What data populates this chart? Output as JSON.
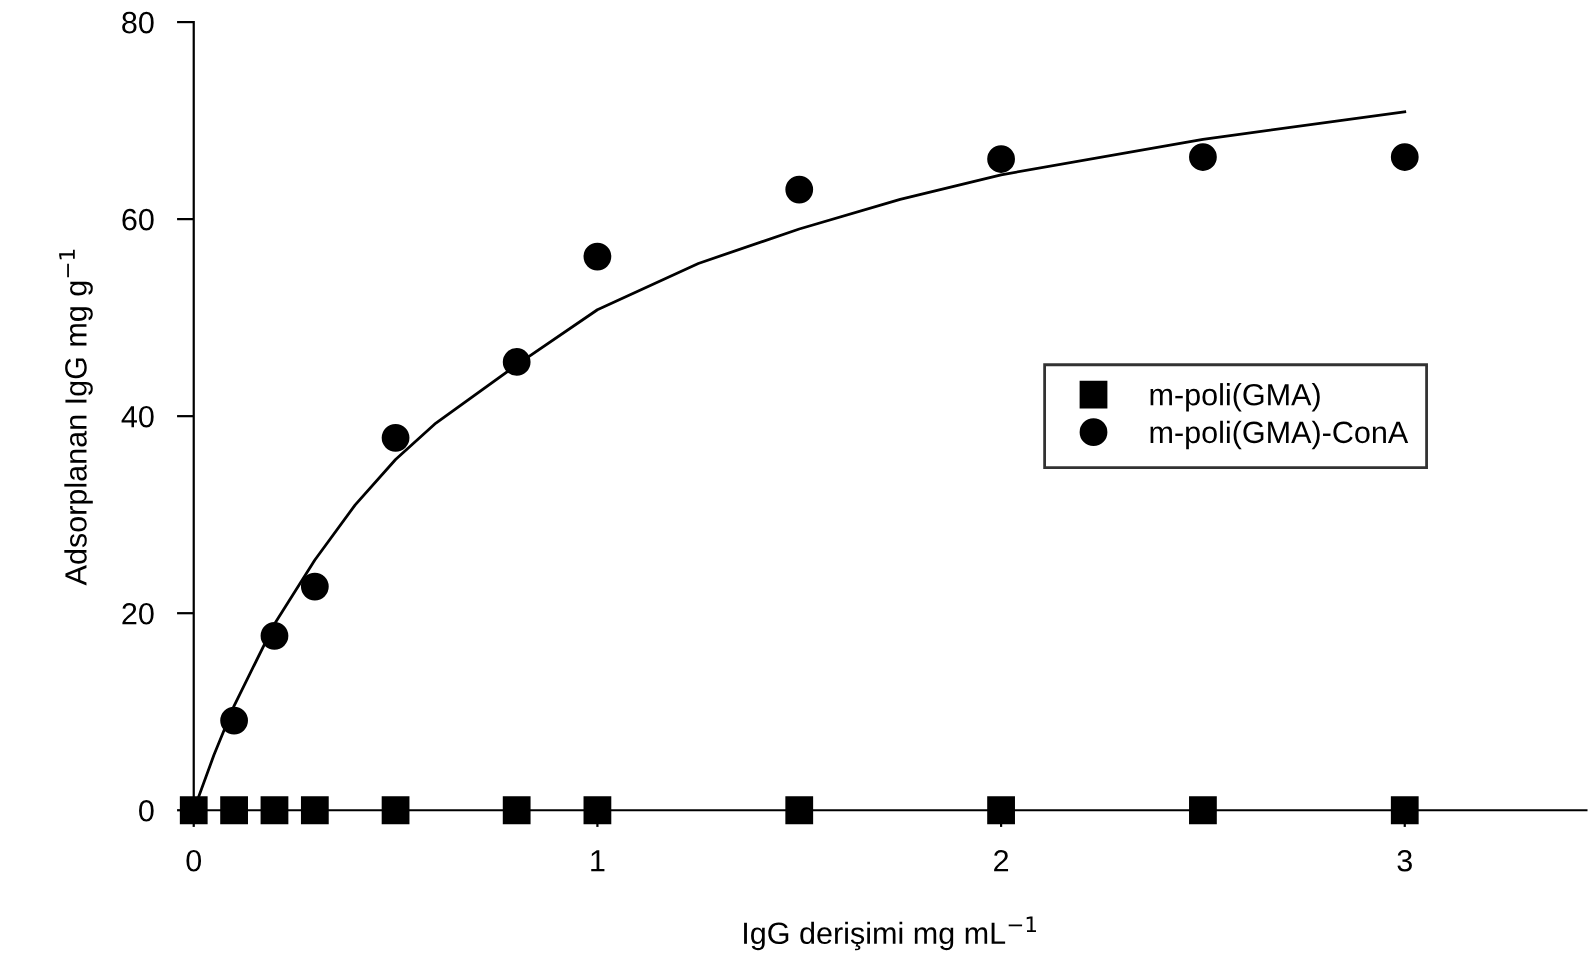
{
  "chart_data": {
    "type": "scatter",
    "xlabel": "IgG derişimi mg mL$^{−1}$",
    "ylabel": "Adsorplanan IgG mg g$^{−1}$",
    "xlim": [
      0,
      3.45
    ],
    "xticks": [
      0,
      1,
      2,
      3
    ],
    "ylim": [
      0,
      80
    ],
    "yticks": [
      0,
      20,
      40,
      60,
      80
    ],
    "grid": false,
    "legend": "right",
    "series": [
      {
        "name": "m-poli(GMA)",
        "marker": "square",
        "color": "#000000",
        "x": [
          0,
          0.1,
          0.2,
          0.3,
          0.5,
          0.8,
          1,
          1.5,
          2,
          2.5,
          3
        ],
        "values": [
          0,
          0,
          0,
          0,
          0,
          0,
          0,
          0,
          0,
          0,
          0
        ]
      },
      {
        "name": "m-poli(GMA)-ConA",
        "marker": "circle",
        "color": "#000000",
        "x": [
          0.1,
          0.2,
          0.3,
          0.5,
          0.8,
          1,
          1.5,
          2,
          2.5,
          3
        ],
        "values": [
          9.1,
          17.7,
          22.7,
          37.8,
          45.5,
          56.2,
          63.0,
          66.1,
          66.3,
          66.3
        ]
      },
      {
        "type": "line",
        "marker": "none",
        "line_style": "solid",
        "color": "#000000",
        "x": [
          0,
          0.05,
          0.1,
          0.2,
          0.3,
          0.4,
          0.5,
          0.6,
          0.8,
          1,
          1.25,
          1.5,
          1.75,
          2,
          2.5,
          3
        ],
        "values": [
          0,
          5.6,
          10.6,
          18.9,
          25.4,
          31.0,
          35.6,
          39.3,
          45.2,
          50.8,
          55.5,
          59.0,
          62.0,
          64.5,
          68.1,
          70.9
        ]
      }
    ]
  }
}
